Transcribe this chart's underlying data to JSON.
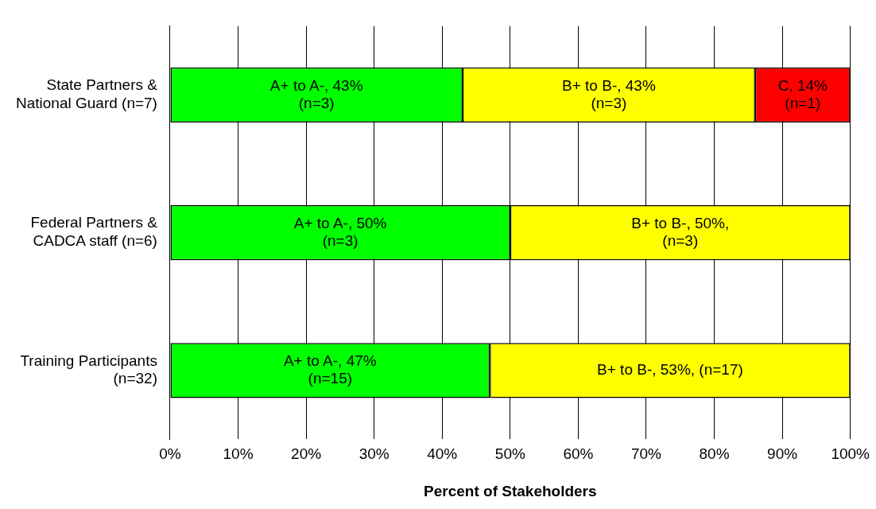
{
  "chart_data": {
    "type": "bar",
    "orientation": "horizontal",
    "stacked": true,
    "categories": [
      "State Partners &\nNational Guard (n=7)",
      "Federal Partners &\nCADCA staff (n=6)",
      "Training Participants\n(n=32)"
    ],
    "series": [
      {
        "color": "#00ff00",
        "values": [
          43,
          50,
          47
        ],
        "value_labels": [
          "A+ to A-, 43%\n(n=3)",
          "A+ to A-, 50%\n(n=3)",
          "A+ to A-, 47%\n(n=15)"
        ]
      },
      {
        "color": "#ffff00",
        "values": [
          43,
          50,
          53
        ],
        "value_labels": [
          "B+ to B-, 43%\n(n=3)",
          "B+ to B-, 50%,\n(n=3)",
          "B+ to B-, 53%, (n=17)"
        ]
      },
      {
        "color": "#ff0000",
        "values": [
          14,
          null,
          null
        ],
        "value_labels": [
          "C, 14%\n(n=1)",
          null,
          null
        ]
      }
    ],
    "xlabel": "Percent of Stakeholders",
    "xlim": [
      0,
      100
    ],
    "xticks": [
      {
        "value": 0,
        "label": "0%"
      },
      {
        "value": 10,
        "label": "10%"
      },
      {
        "value": 20,
        "label": "20%"
      },
      {
        "value": 30,
        "label": "30%"
      },
      {
        "value": 40,
        "label": "40%"
      },
      {
        "value": 50,
        "label": "50%"
      },
      {
        "value": 60,
        "label": "60%"
      },
      {
        "value": 70,
        "label": "70%"
      },
      {
        "value": 80,
        "label": "80%"
      },
      {
        "value": 90,
        "label": "90%"
      },
      {
        "value": 100,
        "label": "100%"
      }
    ],
    "grid": "x",
    "legend": false
  }
}
